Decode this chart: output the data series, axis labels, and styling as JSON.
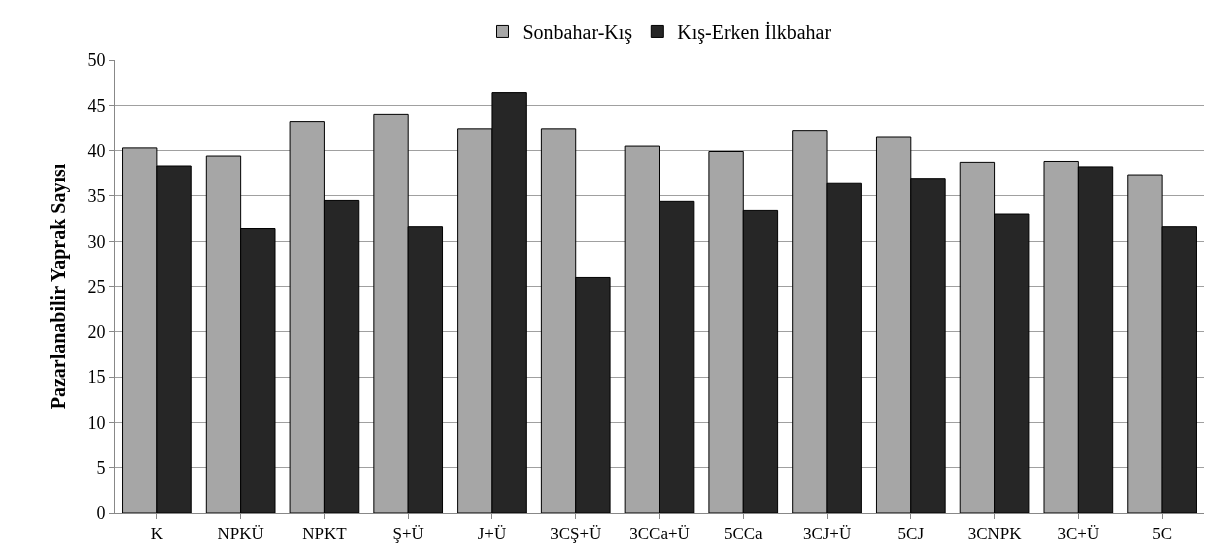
{
  "chart_data": {
    "type": "bar",
    "ylabel": "Pazarlanabilir Yaprak Sayısı",
    "categories": [
      "K",
      "NPKÜ",
      "NPKT",
      "Ş+Ü",
      "J+Ü",
      "3CŞ+Ü",
      "3CCa+Ü",
      "5CCa",
      "3CJ+Ü",
      "5CJ",
      "3CNPK",
      "3C+Ü",
      "5C"
    ],
    "series": [
      {
        "name": "Sonbahar-Kış",
        "color": "#a6a6a6",
        "values": [
          40.3,
          39.4,
          43.2,
          44,
          42.4,
          42.4,
          40.5,
          39.9,
          42.2,
          41.5,
          38.7,
          38.8,
          37.3
        ]
      },
      {
        "name": "Kış-Erken İlkbahar",
        "color": "#262626",
        "values": [
          38.3,
          31.4,
          34.5,
          31.6,
          46.4,
          26,
          34.4,
          33.4,
          36.4,
          36.9,
          33,
          38.2,
          31.6
        ]
      }
    ],
    "ylim": [
      0,
      50
    ],
    "yticks": [
      0,
      5,
      10,
      15,
      20,
      25,
      30,
      35,
      40,
      45,
      50
    ],
    "grid": "y",
    "legend": "top"
  }
}
